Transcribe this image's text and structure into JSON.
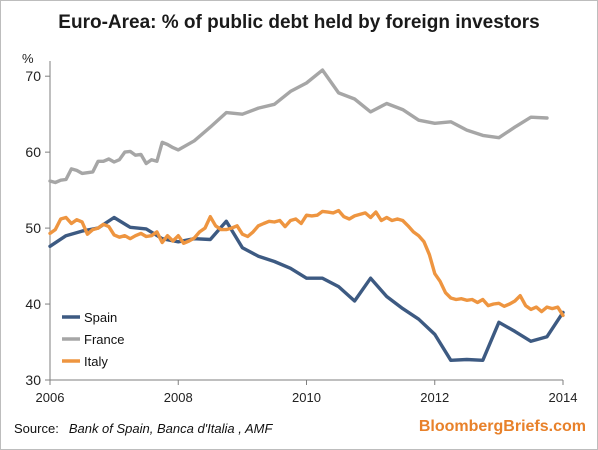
{
  "chart_data": {
    "type": "line",
    "title": "Euro-Area: % of public debt held by foreign investors",
    "ylabel": "%",
    "xlabel": "",
    "ylim": [
      30,
      72
    ],
    "xlim": [
      2006,
      2014
    ],
    "yticks": [
      30,
      40,
      50,
      60,
      70
    ],
    "xticks": [
      2006,
      2008,
      2010,
      2012,
      2014
    ],
    "grid": false,
    "legend": "bottom-left",
    "series": [
      {
        "name": "Spain",
        "color": "#3d5a82",
        "x": [
          2006,
          2006.25,
          2006.5,
          2006.75,
          2007,
          2007.25,
          2007.5,
          2007.75,
          2008,
          2008.25,
          2008.5,
          2008.75,
          2009,
          2009.25,
          2009.5,
          2009.75,
          2010,
          2010.25,
          2010.5,
          2010.75,
          2011,
          2011.25,
          2011.5,
          2011.75,
          2012,
          2012.25,
          2012.5,
          2012.75,
          2013,
          2013.25,
          2013.5,
          2013.75,
          2014
        ],
        "values": [
          47.6,
          49.0,
          49.6,
          50.0,
          51.4,
          50.1,
          49.9,
          48.6,
          48.2,
          48.6,
          48.5,
          50.9,
          47.4,
          46.3,
          45.6,
          44.7,
          43.4,
          43.4,
          42.3,
          40.4,
          43.4,
          41.0,
          39.4,
          38.0,
          36.0,
          32.6,
          32.7,
          32.6,
          37.6,
          36.4,
          35.1,
          35.7,
          38.9
        ]
      },
      {
        "name": "France",
        "color": "#a6a6a6",
        "x": [
          2006,
          2006.083,
          2006.167,
          2006.25,
          2006.333,
          2006.417,
          2006.5,
          2006.583,
          2006.667,
          2006.75,
          2006.833,
          2006.917,
          2007,
          2007.083,
          2007.167,
          2007.25,
          2007.333,
          2007.417,
          2007.5,
          2007.583,
          2007.667,
          2007.75,
          2007.833,
          2007.917,
          2008,
          2008.25,
          2008.5,
          2008.75,
          2009,
          2009.25,
          2009.5,
          2009.75,
          2010,
          2010.25,
          2010.5,
          2010.75,
          2011,
          2011.25,
          2011.5,
          2011.75,
          2012,
          2012.25,
          2012.5,
          2012.75,
          2013,
          2013.25,
          2013.5,
          2013.75
        ],
        "values": [
          56.2,
          56.0,
          56.3,
          56.4,
          57.8,
          57.6,
          57.2,
          57.3,
          57.4,
          58.8,
          58.8,
          59.1,
          58.7,
          59.0,
          60.0,
          60.1,
          59.6,
          59.7,
          58.5,
          59.0,
          58.8,
          61.3,
          61.0,
          60.6,
          60.3,
          61.5,
          63.3,
          65.2,
          65.0,
          65.8,
          66.3,
          68.0,
          69.1,
          70.8,
          67.8,
          67.0,
          65.3,
          66.4,
          65.6,
          64.2,
          63.8,
          64.0,
          62.9,
          62.2,
          61.9,
          63.3,
          64.6,
          64.5
        ]
      },
      {
        "name": "Italy",
        "color": "#ee9540",
        "x": [
          2006,
          2006.083,
          2006.167,
          2006.25,
          2006.333,
          2006.417,
          2006.5,
          2006.583,
          2006.667,
          2006.75,
          2006.833,
          2006.917,
          2007,
          2007.083,
          2007.167,
          2007.25,
          2007.333,
          2007.417,
          2007.5,
          2007.583,
          2007.667,
          2007.75,
          2007.833,
          2007.917,
          2008,
          2008.083,
          2008.167,
          2008.25,
          2008.333,
          2008.417,
          2008.5,
          2008.583,
          2008.667,
          2008.75,
          2008.833,
          2008.917,
          2009,
          2009.083,
          2009.167,
          2009.25,
          2009.333,
          2009.417,
          2009.5,
          2009.583,
          2009.667,
          2009.75,
          2009.833,
          2009.917,
          2010,
          2010.083,
          2010.167,
          2010.25,
          2010.333,
          2010.417,
          2010.5,
          2010.583,
          2010.667,
          2010.75,
          2010.833,
          2010.917,
          2011,
          2011.083,
          2011.167,
          2011.25,
          2011.333,
          2011.417,
          2011.5,
          2011.583,
          2011.667,
          2011.75,
          2011.833,
          2011.917,
          2012,
          2012.083,
          2012.167,
          2012.25,
          2012.333,
          2012.417,
          2012.5,
          2012.583,
          2012.667,
          2012.75,
          2012.833,
          2012.917,
          2013,
          2013.083,
          2013.167,
          2013.25,
          2013.333,
          2013.417,
          2013.5,
          2013.583,
          2013.667,
          2013.75,
          2013.833,
          2013.917,
          2014
        ],
        "values": [
          49.3,
          49.8,
          51.2,
          51.4,
          50.6,
          51.1,
          50.8,
          49.2,
          49.8,
          50.0,
          50.5,
          50.2,
          49.1,
          48.8,
          49.0,
          48.6,
          49.0,
          49.3,
          48.9,
          49.0,
          49.5,
          48.1,
          49.0,
          48.3,
          49.0,
          48.0,
          48.3,
          48.7,
          49.5,
          50.0,
          51.5,
          50.3,
          49.8,
          49.8,
          50.0,
          50.3,
          49.2,
          48.9,
          49.5,
          50.3,
          50.6,
          50.9,
          50.8,
          51.0,
          50.2,
          51.0,
          51.2,
          50.6,
          51.7,
          51.6,
          51.7,
          52.2,
          52.1,
          52.0,
          52.3,
          51.5,
          51.2,
          51.6,
          51.8,
          52.0,
          51.4,
          52.1,
          51.0,
          51.4,
          51.0,
          51.2,
          51.0,
          50.3,
          49.5,
          49.0,
          48.2,
          46.5,
          44.0,
          43.0,
          41.5,
          40.8,
          40.6,
          40.7,
          40.5,
          40.6,
          40.2,
          40.6,
          39.8,
          40.0,
          40.1,
          39.7,
          40.0,
          40.4,
          41.1,
          39.8,
          39.3,
          39.6,
          39.0,
          39.6,
          39.4,
          39.6,
          38.5
        ]
      }
    ]
  },
  "source": {
    "lead": "Source:",
    "names": "Bank of Spain, Banca d'Italia , AMF"
  },
  "brand": "BloombergBriefs.com"
}
